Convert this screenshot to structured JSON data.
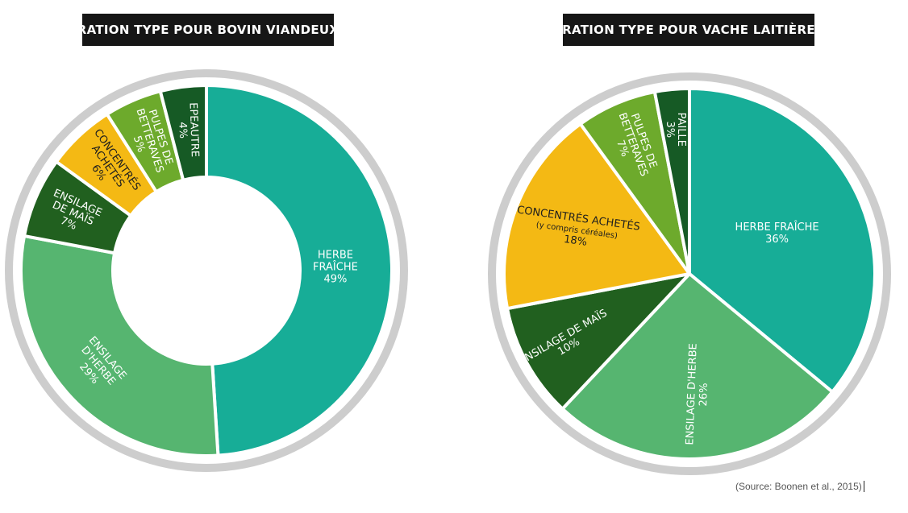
{
  "chart_data": [
    {
      "type": "pie",
      "title": "RATION TYPE POUR BOVIN VIANDEUX",
      "slices": [
        {
          "label": [
            "HERBE",
            "FRAÎCHE"
          ],
          "value": 49,
          "value_label": "49%",
          "color": "#17ad97"
        },
        {
          "label": [
            "ENSILAGE",
            "D'HERBE"
          ],
          "value": 29,
          "value_label": "29%",
          "color": "#56b570"
        },
        {
          "label": [
            "ENSILAGE",
            "DE MAÏS"
          ],
          "value": 7,
          "value_label": "7%",
          "color": "#21601f"
        },
        {
          "label": [
            "CONCENTRÉS",
            "ACHETÉS"
          ],
          "value": 6,
          "value_label": "6%",
          "color": "#f4b914"
        },
        {
          "label": [
            "PULPES DE",
            "BETTERAVES"
          ],
          "value": 5,
          "value_label": "5%",
          "color": "#6daa2c"
        },
        {
          "label": [
            "EPEAUTRE"
          ],
          "value": 4,
          "value_label": "4%",
          "color": "#165a25"
        }
      ]
    },
    {
      "type": "pie",
      "title": "RATION TYPE POUR VACHE LAITIÈRE",
      "slices": [
        {
          "label": [
            "HERBE FRAÎCHE"
          ],
          "value": 36,
          "value_label": "36%",
          "color": "#17ad97"
        },
        {
          "label": [
            "ENSILAGE D'HERBE"
          ],
          "value": 26,
          "value_label": "26%",
          "color": "#56b570"
        },
        {
          "label": [
            "ENSILAGE DE MAÏS"
          ],
          "value": 10,
          "value_label": "10%",
          "color": "#21601f"
        },
        {
          "label": [
            "CONCENTRÉS ACHETÉS",
            "(y compris céréales)"
          ],
          "value": 18,
          "value_label": "18%",
          "color": "#f4b914"
        },
        {
          "label": [
            "PULPES DE",
            "BETTERAVES"
          ],
          "value": 7,
          "value_label": "7%",
          "color": "#6daa2c"
        },
        {
          "label": [
            "PAILLE"
          ],
          "value": 3,
          "value_label": "3%",
          "color": "#165a25"
        }
      ]
    }
  ],
  "source": "(Source: Boonen et al., 2015)"
}
